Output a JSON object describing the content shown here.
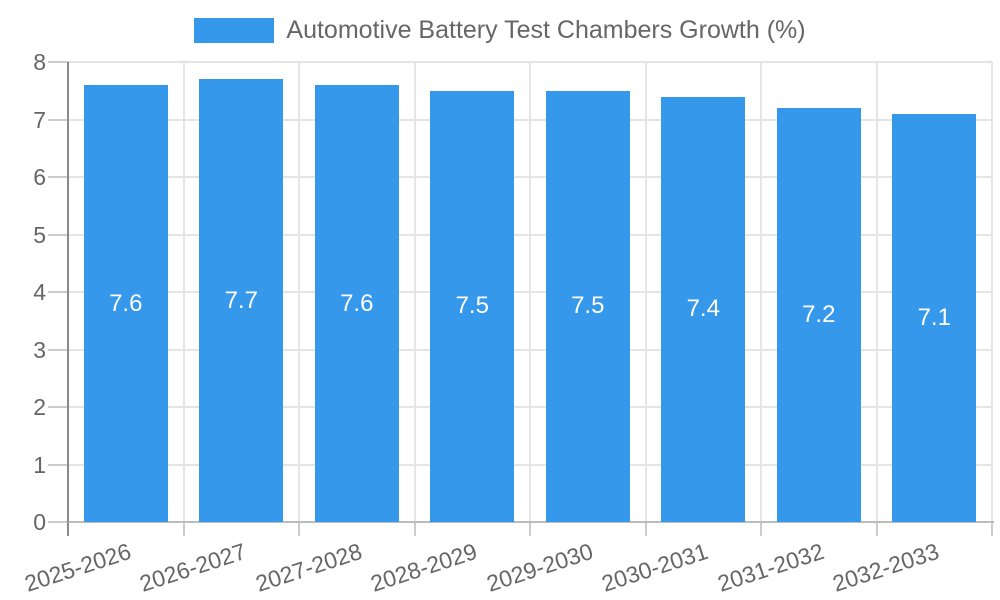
{
  "legend": {
    "label": "Automotive Battery Test Chambers Growth (%)",
    "swatch_color": "#3598EB"
  },
  "chart_data": {
    "type": "bar",
    "title": "Automotive Battery Test Chambers Growth (%)",
    "categories": [
      "2025-2026",
      "2026-2027",
      "2027-2028",
      "2028-2029",
      "2029-2030",
      "2030-2031",
      "2031-2032",
      "2032-2033"
    ],
    "values": [
      7.6,
      7.7,
      7.6,
      7.5,
      7.5,
      7.4,
      7.2,
      7.1
    ],
    "data_labels": [
      "7.6",
      "7.7",
      "7.6",
      "7.5",
      "7.5",
      "7.4",
      "7.2",
      "7.1"
    ],
    "xlabel": "",
    "ylabel": "",
    "ylim": [
      0,
      8
    ],
    "ytick_values": [
      0,
      1,
      2,
      3,
      4,
      5,
      6,
      7,
      8
    ],
    "grid": true,
    "legend_position": "top",
    "bar_color": "#3598EB",
    "data_label_color": "#ffffff",
    "axis_text_color": "#666666"
  },
  "colors": {
    "bar": "#3598EB",
    "grid": "#e5e5e5",
    "axis_y_line": "#8a8a8a",
    "axis_x_line": "#bcbcbc",
    "tick": "#cccccc",
    "text": "#666666",
    "value_label": "#ffffff",
    "background": "#ffffff"
  }
}
